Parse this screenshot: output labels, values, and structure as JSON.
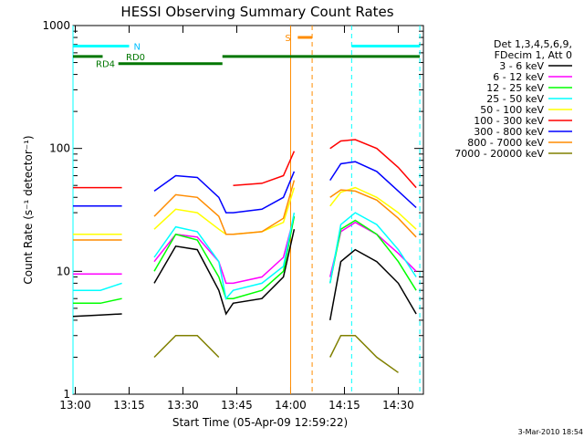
{
  "chart_data": {
    "type": "line",
    "title": "HESSI Observing Summary Count Rates",
    "xlabel": "Start Time (05-Apr-09 12:59:22)",
    "ylabel": "Count Rate (s⁻¹ detector⁻¹)",
    "y_scale": "log",
    "ylim": [
      1,
      1000
    ],
    "xlim": [
      "12:59:22",
      "14:37:00"
    ],
    "x_ticks": [
      "13:00",
      "13:15",
      "13:30",
      "13:45",
      "14:00",
      "14:15",
      "14:30"
    ],
    "y_ticks": [
      "1",
      "10",
      "100",
      "1000"
    ],
    "grid": false,
    "legend_position": "right",
    "legend_header": [
      "Det 1,3,4,5,6,9,",
      "FDecim 1, Att 0"
    ],
    "footer_date": "3-Mar-2010 18:54",
    "time_points": [
      "12:59:22",
      "13:07",
      "13:13",
      "13:16",
      "13:22",
      "13:28",
      "13:34",
      "13:40",
      "13:42",
      "13:44",
      "13:52",
      "13:58",
      "14:01",
      "14:02",
      "14:05",
      "14:10",
      "14:11",
      "14:14",
      "14:18",
      "14:24",
      "14:30",
      "14:35"
    ],
    "series": [
      {
        "name": "3 - 6 keV",
        "color": "#000000",
        "values": [
          4.3,
          4.4,
          4.5,
          null,
          8,
          16,
          15,
          7,
          4.5,
          5.5,
          6,
          9,
          22,
          null,
          null,
          null,
          4,
          12,
          15,
          12,
          8,
          4.5
        ]
      },
      {
        "name": "6 - 12 keV",
        "color": "#ff00ff",
        "values": [
          9.5,
          9.5,
          9.5,
          null,
          12,
          20,
          19,
          12,
          8,
          8,
          9,
          13,
          28,
          null,
          null,
          null,
          9,
          21,
          25,
          20,
          14,
          10
        ]
      },
      {
        "name": "12 - 25 keV",
        "color": "#00ff00",
        "values": [
          5.5,
          5.5,
          6,
          null,
          10,
          20,
          18,
          9,
          6,
          6,
          7,
          10,
          28,
          null,
          null,
          null,
          8,
          22,
          26,
          20,
          12,
          7
        ]
      },
      {
        "name": "25 - 50 keV",
        "color": "#00ffff",
        "values": [
          7,
          7,
          8,
          null,
          13,
          23,
          21,
          12,
          6,
          7,
          8,
          11,
          30,
          null,
          null,
          null,
          8,
          24,
          30,
          24,
          15,
          9
        ]
      },
      {
        "name": "50 - 100 keV",
        "color": "#ffff00",
        "values": [
          20,
          20,
          20,
          null,
          22,
          32,
          30,
          22,
          20,
          20,
          21,
          25,
          48,
          null,
          null,
          null,
          34,
          44,
          48,
          40,
          30,
          22
        ]
      },
      {
        "name": "100 - 300 keV",
        "color": "#ff0000",
        "values": [
          48,
          48,
          48,
          null,
          null,
          null,
          null,
          null,
          null,
          50,
          52,
          60,
          95,
          null,
          null,
          null,
          100,
          115,
          118,
          100,
          70,
          48
        ]
      },
      {
        "name": "300 - 800 keV",
        "color": "#0000ff",
        "values": [
          34,
          34,
          34,
          null,
          45,
          60,
          58,
          40,
          30,
          30,
          32,
          40,
          65,
          null,
          null,
          null,
          55,
          75,
          78,
          65,
          45,
          33
        ]
      },
      {
        "name": "800 - 7000 keV",
        "color": "#ff8c00",
        "values": [
          18,
          18,
          18,
          null,
          28,
          42,
          40,
          28,
          20,
          20,
          21,
          27,
          55,
          null,
          null,
          null,
          40,
          46,
          45,
          38,
          27,
          19
        ]
      },
      {
        "name": "7000 - 20000 keV",
        "color": "#808000",
        "values": [
          null,
          null,
          null,
          null,
          2,
          3,
          3,
          2,
          null,
          null,
          null,
          null,
          null,
          null,
          null,
          null,
          2,
          3,
          3,
          2,
          1.5,
          null
        ]
      }
    ],
    "annotations": {
      "saa_vertical_lines": [
        "12:59:22",
        "14:17",
        "14:36"
      ],
      "attenuator_lines": [
        "14:00",
        "14:06"
      ],
      "night_bars": [
        {
          "label": "N",
          "start": "12:59:22",
          "end": "13:15"
        },
        {
          "label": "",
          "start": "14:17",
          "end": "14:36"
        }
      ],
      "rd_bars": [
        {
          "label": "RD0",
          "start": "12:59:22",
          "end": "13:00"
        },
        {
          "label": "RD4",
          "start": "13:12",
          "end": "13:41"
        },
        {
          "label": "",
          "start": "13:41",
          "end": "14:36"
        }
      ],
      "saa_bar": {
        "label": "S",
        "start": "14:02",
        "end": "14:06"
      }
    }
  }
}
